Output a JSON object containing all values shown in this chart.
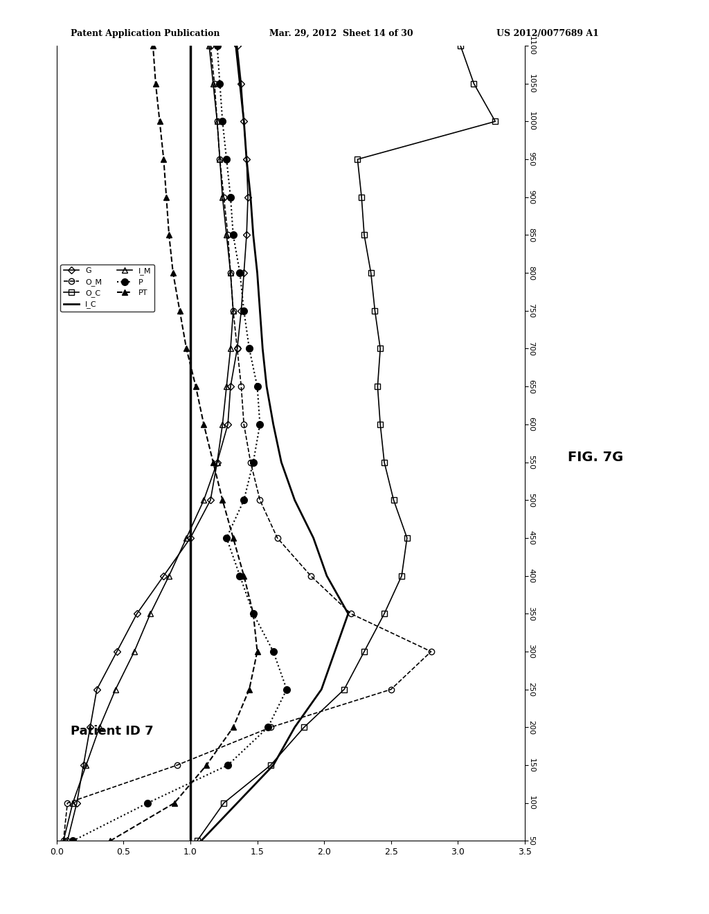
{
  "title": "Patient ID 7",
  "fig_caption": "FIG. 7G",
  "header_left": "Patent Application Publication",
  "header_center": "Mar. 29, 2012  Sheet 14 of 30",
  "header_right": "US 2012/0077689 A1",
  "background_color": "#ffffff",
  "reference_x": 1.0,
  "x_lim": [
    0.0,
    3.5
  ],
  "y_lim": [
    50,
    1100
  ],
  "x_ticks": [
    0.0,
    0.5,
    1.0,
    1.5,
    2.0,
    2.5,
    3.0,
    3.5
  ],
  "y_ticks": [
    50,
    100,
    150,
    200,
    250,
    300,
    350,
    400,
    450,
    500,
    550,
    600,
    650,
    700,
    750,
    800,
    850,
    900,
    950,
    1000,
    1050,
    1100
  ],
  "series_order": [
    "G",
    "O_M",
    "O_C",
    "I_C",
    "I_M",
    "P",
    "PT"
  ],
  "series": {
    "G": {
      "t": [
        50,
        100,
        150,
        200,
        250,
        300,
        350,
        400,
        450,
        500,
        550,
        600,
        650,
        700,
        750,
        800,
        850,
        900,
        950,
        1000,
        1050,
        1100
      ],
      "v": [
        0.08,
        0.15,
        0.2,
        0.25,
        0.3,
        0.45,
        0.6,
        0.8,
        1.0,
        1.15,
        1.2,
        1.28,
        1.3,
        1.35,
        1.38,
        1.4,
        1.42,
        1.43,
        1.42,
        1.4,
        1.38,
        1.35
      ],
      "linestyle": "-",
      "marker": "D",
      "ms": 5,
      "mfc": "none",
      "lw": 1.2,
      "label": "G"
    },
    "O_M": {
      "t": [
        50,
        100,
        150,
        200,
        250,
        300,
        350,
        400,
        450,
        500,
        550,
        600,
        650,
        700,
        750,
        800,
        850,
        900,
        950,
        1000,
        1050,
        1100
      ],
      "v": [
        0.05,
        0.08,
        0.9,
        1.6,
        2.5,
        2.8,
        2.2,
        1.9,
        1.65,
        1.52,
        1.45,
        1.4,
        1.38,
        1.35,
        1.32,
        1.3,
        1.28,
        1.25,
        1.22,
        1.2,
        1.18,
        1.15
      ],
      "linestyle": "--",
      "marker": "o",
      "ms": 6,
      "mfc": "none",
      "lw": 1.2,
      "label": "O_M"
    },
    "O_C": {
      "t": [
        50,
        100,
        150,
        200,
        250,
        300,
        350,
        400,
        450,
        500,
        550,
        600,
        650,
        700,
        750,
        800,
        850,
        900,
        950,
        1000,
        1050,
        1100
      ],
      "v": [
        1.05,
        1.25,
        1.6,
        1.85,
        2.15,
        2.3,
        2.45,
        2.58,
        2.62,
        2.52,
        2.45,
        2.42,
        2.4,
        2.42,
        2.38,
        2.35,
        2.3,
        2.28,
        2.25,
        3.28,
        3.12,
        3.02
      ],
      "linestyle": "-",
      "marker": "s",
      "ms": 6,
      "mfc": "none",
      "lw": 1.2,
      "label": "O_C"
    },
    "I_C": {
      "t": [
        50,
        100,
        150,
        200,
        250,
        300,
        350,
        400,
        450,
        500,
        550,
        600,
        650,
        700,
        750,
        800,
        850,
        900,
        950,
        1000,
        1050,
        1100
      ],
      "v": [
        1.08,
        1.35,
        1.62,
        1.78,
        1.98,
        2.08,
        2.18,
        2.02,
        1.92,
        1.78,
        1.68,
        1.62,
        1.57,
        1.54,
        1.52,
        1.5,
        1.47,
        1.45,
        1.42,
        1.4,
        1.37,
        1.34
      ],
      "linestyle": "-",
      "marker": null,
      "ms": 0,
      "mfc": "none",
      "lw": 2.0,
      "label": "I_C"
    },
    "I_M": {
      "t": [
        50,
        100,
        150,
        200,
        250,
        300,
        350,
        400,
        450,
        500,
        550,
        600,
        650,
        700,
        750,
        800,
        850,
        900,
        950,
        1000,
        1050,
        1100
      ],
      "v": [
        0.05,
        0.12,
        0.22,
        0.32,
        0.44,
        0.58,
        0.7,
        0.84,
        0.97,
        1.1,
        1.2,
        1.24,
        1.27,
        1.3,
        1.32,
        1.3,
        1.27,
        1.24,
        1.22,
        1.2,
        1.17,
        1.14
      ],
      "linestyle": "-",
      "marker": "^",
      "ms": 6,
      "mfc": "none",
      "lw": 1.2,
      "label": "I_M"
    },
    "P": {
      "t": [
        50,
        100,
        150,
        200,
        250,
        300,
        350,
        400,
        450,
        500,
        550,
        600,
        650,
        700,
        750,
        800,
        850,
        900,
        950,
        1000,
        1050,
        1100
      ],
      "v": [
        0.12,
        0.68,
        1.28,
        1.58,
        1.72,
        1.62,
        1.47,
        1.37,
        1.27,
        1.4,
        1.47,
        1.52,
        1.5,
        1.44,
        1.4,
        1.37,
        1.32,
        1.3,
        1.27,
        1.24,
        1.22,
        1.2
      ],
      "linestyle": ":",
      "marker": "o",
      "ms": 7,
      "mfc": "black",
      "lw": 1.5,
      "label": "P"
    },
    "PT": {
      "t": [
        50,
        100,
        150,
        200,
        250,
        300,
        350,
        400,
        450,
        500,
        550,
        600,
        650,
        700,
        750,
        800,
        850,
        900,
        950,
        1000,
        1050,
        1100
      ],
      "v": [
        0.4,
        0.88,
        1.12,
        1.32,
        1.44,
        1.5,
        1.47,
        1.4,
        1.32,
        1.24,
        1.17,
        1.1,
        1.04,
        0.97,
        0.92,
        0.87,
        0.84,
        0.82,
        0.8,
        0.77,
        0.74,
        0.72
      ],
      "linestyle": "--",
      "marker": "^",
      "ms": 6,
      "mfc": "black",
      "lw": 1.5,
      "label": "PT"
    }
  }
}
